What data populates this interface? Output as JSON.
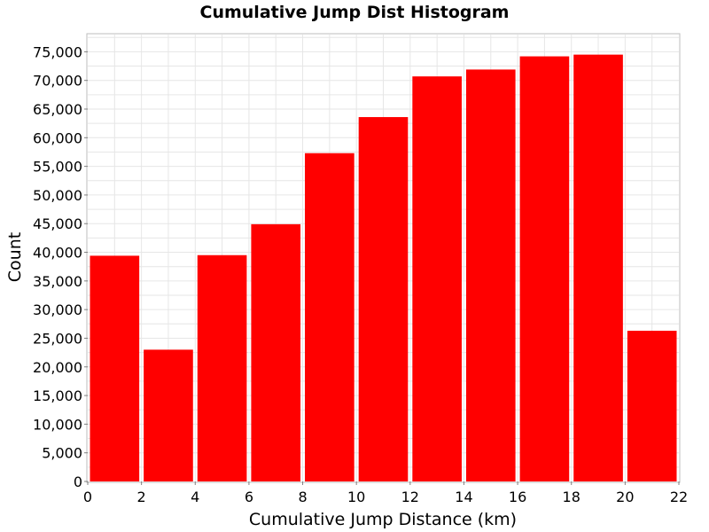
{
  "chart_data": {
    "type": "bar",
    "title": "Cumulative Jump Dist Histogram",
    "xlabel": "Cumulative Jump Distance (km)",
    "ylabel": "Count",
    "xlim": [
      0,
      22
    ],
    "ylim": [
      0,
      78000
    ],
    "grid": true,
    "legend": "none",
    "bar_color": "#ff0000",
    "bins": [
      {
        "x0": 0,
        "x1": 2,
        "value": 39400
      },
      {
        "x0": 2,
        "x1": 4,
        "value": 23000
      },
      {
        "x0": 4,
        "x1": 6,
        "value": 39500
      },
      {
        "x0": 6,
        "x1": 8,
        "value": 44900
      },
      {
        "x0": 8,
        "x1": 10,
        "value": 57300
      },
      {
        "x0": 10,
        "x1": 12,
        "value": 63600
      },
      {
        "x0": 12,
        "x1": 14,
        "value": 70700
      },
      {
        "x0": 14,
        "x1": 16,
        "value": 71900
      },
      {
        "x0": 16,
        "x1": 18,
        "value": 74200
      },
      {
        "x0": 18,
        "x1": 20,
        "value": 74500
      },
      {
        "x0": 20,
        "x1": 22,
        "value": 26300
      }
    ],
    "x_ticks": [
      {
        "value": 0,
        "label": "0"
      },
      {
        "value": 2,
        "label": "2"
      },
      {
        "value": 4,
        "label": "4"
      },
      {
        "value": 6,
        "label": "6"
      },
      {
        "value": 8,
        "label": "8"
      },
      {
        "value": 10,
        "label": "10"
      },
      {
        "value": 12,
        "label": "12"
      },
      {
        "value": 14,
        "label": "14"
      },
      {
        "value": 16,
        "label": "16"
      },
      {
        "value": 18,
        "label": "18"
      },
      {
        "value": 20,
        "label": "20"
      },
      {
        "value": 22,
        "label": "22"
      }
    ],
    "y_ticks": [
      {
        "value": 0,
        "label": "0"
      },
      {
        "value": 5000,
        "label": "5,000"
      },
      {
        "value": 10000,
        "label": "10,000"
      },
      {
        "value": 15000,
        "label": "15,000"
      },
      {
        "value": 20000,
        "label": "20,000"
      },
      {
        "value": 25000,
        "label": "25,000"
      },
      {
        "value": 30000,
        "label": "30,000"
      },
      {
        "value": 35000,
        "label": "35,000"
      },
      {
        "value": 40000,
        "label": "40,000"
      },
      {
        "value": 45000,
        "label": "45,000"
      },
      {
        "value": 50000,
        "label": "50,000"
      },
      {
        "value": 55000,
        "label": "55,000"
      },
      {
        "value": 60000,
        "label": "60,000"
      },
      {
        "value": 65000,
        "label": "65,000"
      },
      {
        "value": 70000,
        "label": "70,000"
      },
      {
        "value": 75000,
        "label": "75,000"
      }
    ]
  }
}
